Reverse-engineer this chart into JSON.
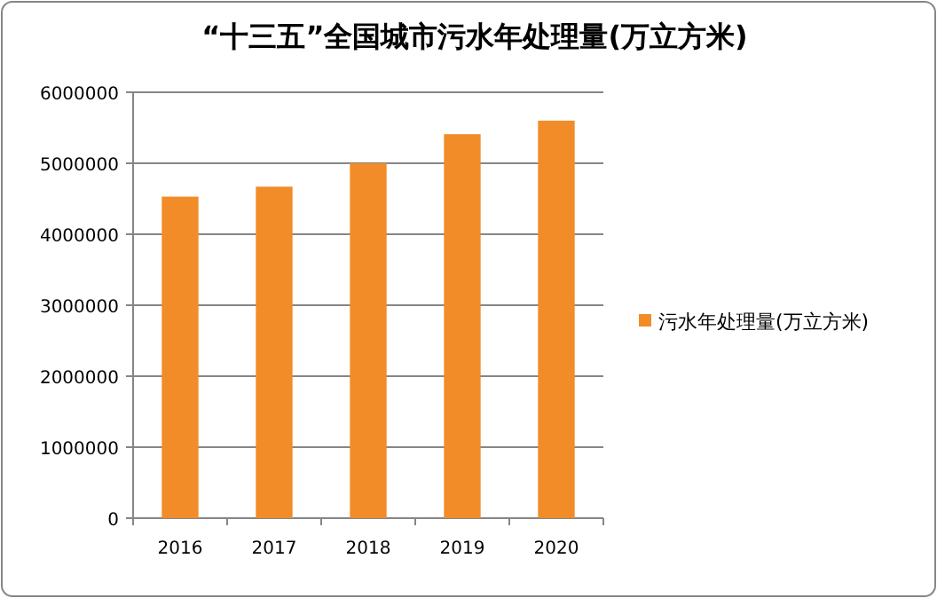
{
  "chart_data": {
    "type": "bar",
    "title": "“十三五”全国城市污水年处理量(万立方米)",
    "categories": [
      "2016",
      "2017",
      "2018",
      "2019",
      "2020"
    ],
    "series": [
      {
        "name": "污水年处理量(万立方米)",
        "color": "#f28c28",
        "values": [
          4530000,
          4670000,
          5000000,
          5410000,
          5600000
        ]
      }
    ],
    "ylim": [
      0,
      6000000
    ],
    "yticks": [
      0,
      1000000,
      2000000,
      3000000,
      4000000,
      5000000,
      6000000
    ],
    "grid": "y",
    "legend": "right"
  }
}
